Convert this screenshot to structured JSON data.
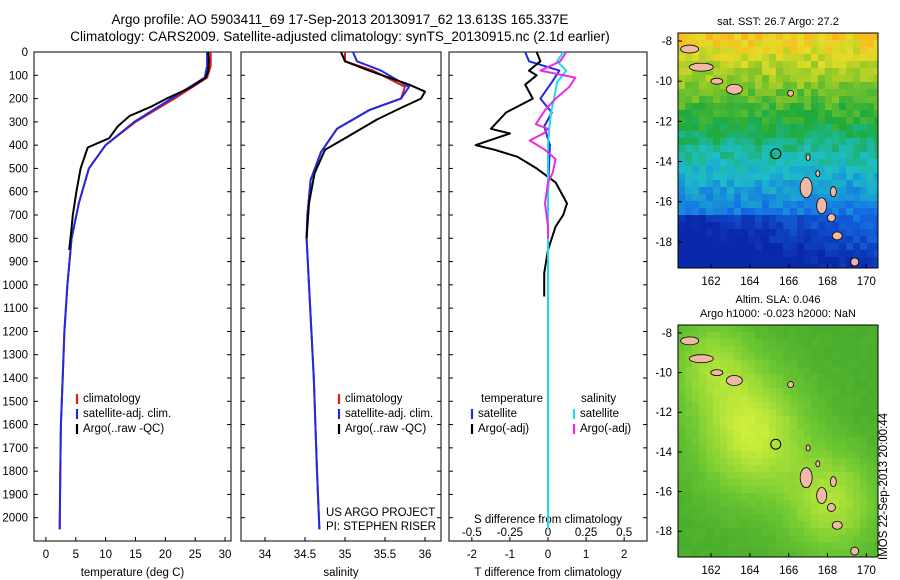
{
  "header": {
    "line1": "Argo profile: AO 5903411_69 17-Sep-2013 20130917_62 13.613S 165.337E",
    "line2": "Climatology: CARS2009. Satellite-adjusted climatology: synTS_20130915.nc (2.1d earlier)"
  },
  "colors": {
    "climatology": "#e8141a",
    "satellite": "#1f2be3",
    "argo": "#000000",
    "satellite_s": "#22d8ec",
    "argo_s": "#e62ee0",
    "land": "#f2b8a6"
  },
  "panels": {
    "temperature": {
      "xlabel": "temperature (deg C)",
      "legend": [
        "climatology",
        "satellite-adj. clim.",
        "Argo(..raw -QC)"
      ]
    },
    "salinity": {
      "xlabel": "salinity",
      "legend": [
        "climatology",
        "satellite-adj. clim.",
        "Argo(..raw -QC)"
      ],
      "credit1": "US ARGO PROJECT",
      "credit2": "PI: STEPHEN RISER"
    },
    "difference": {
      "xlabel": "T difference from climatology",
      "top_axis_title": "S difference from climatology",
      "legend_t_head": "temperature",
      "legend_s_head": "salinity",
      "legend_t": [
        "satellite",
        "Argo(-adj)"
      ],
      "legend_s": [
        "satellite",
        "Argo(-adj)"
      ]
    }
  },
  "maps": {
    "sst": {
      "title": "sat. SST: 26.7 Argo: 27.2"
    },
    "sla": {
      "title1": "Altim. SLA: 0.046",
      "title2": "Argo h1000: -0.023 h2000: NaN"
    }
  },
  "stamp": "IMOS 22-Sep-2013 20:00:44",
  "chart_data": [
    {
      "type": "line",
      "title": "",
      "xlabel": "temperature (deg C)",
      "ylabel": "",
      "xlim": [
        -2,
        31
      ],
      "ylim": [
        2100,
        0
      ],
      "xticks": [
        0,
        5,
        10,
        15,
        20,
        25,
        30
      ],
      "yticks": [
        0,
        100,
        200,
        300,
        400,
        500,
        600,
        700,
        800,
        900,
        1000,
        1100,
        1200,
        1300,
        1400,
        1500,
        1600,
        1700,
        1800,
        1900,
        2000
      ],
      "series": [
        {
          "name": "climatology",
          "color": "#e8141a",
          "x": [
            27.6,
            27.6,
            27.0,
            21.5,
            15.0,
            10.0,
            7.2,
            5.5,
            4.3,
            3.6,
            3.1,
            2.8,
            2.5,
            2.4,
            2.3
          ],
          "y": [
            0,
            60,
            110,
            200,
            300,
            400,
            500,
            650,
            800,
            1000,
            1200,
            1400,
            1600,
            1800,
            2050
          ]
        },
        {
          "name": "satellite-adj. clim.",
          "color": "#1f2be3",
          "x": [
            27.0,
            27.0,
            26.6,
            21.0,
            14.8,
            10.0,
            7.2,
            5.5,
            4.3,
            3.6,
            3.1,
            2.8,
            2.5,
            2.4,
            2.3
          ],
          "y": [
            0,
            60,
            110,
            200,
            300,
            400,
            500,
            650,
            800,
            1000,
            1200,
            1400,
            1600,
            1800,
            2050
          ]
        },
        {
          "name": "Argo(..raw -QC)",
          "color": "#000000",
          "x": [
            27.2,
            27.3,
            27.2,
            26.8,
            24.0,
            20.2,
            17.6,
            14.0,
            12.0,
            10.6,
            7.0,
            5.8,
            5.1,
            4.5,
            4.2,
            3.9
          ],
          "y": [
            0,
            40,
            80,
            110,
            155,
            200,
            235,
            275,
            320,
            370,
            410,
            500,
            600,
            700,
            780,
            850
          ]
        }
      ]
    },
    {
      "type": "line",
      "title": "",
      "xlabel": "salinity",
      "ylabel": "",
      "xlim": [
        33.7,
        36.2
      ],
      "ylim": [
        2100,
        0
      ],
      "xticks": [
        34,
        34.5,
        35,
        35.5,
        36
      ],
      "series": [
        {
          "name": "climatology",
          "color": "#e8141a",
          "x": [
            35.0,
            35.0,
            35.35,
            35.75,
            35.7,
            35.3,
            34.9,
            34.7,
            34.57,
            34.53,
            34.52,
            34.55,
            34.58,
            34.61,
            34.63,
            34.65,
            34.68
          ],
          "y": [
            0,
            40,
            80,
            150,
            200,
            250,
            330,
            430,
            550,
            700,
            800,
            1000,
            1200,
            1400,
            1600,
            1800,
            2050
          ]
        },
        {
          "name": "satellite-adj. clim.",
          "color": "#1f2be3",
          "x": [
            35.1,
            35.15,
            35.45,
            35.8,
            35.7,
            35.3,
            34.9,
            34.7,
            34.57,
            34.53,
            34.52,
            34.55,
            34.58,
            34.61,
            34.63,
            34.65,
            34.68
          ],
          "y": [
            0,
            40,
            80,
            150,
            200,
            250,
            330,
            430,
            550,
            700,
            800,
            1000,
            1200,
            1400,
            1600,
            1800,
            2050
          ]
        },
        {
          "name": "Argo(..raw -QC)",
          "color": "#000000",
          "x": [
            34.95,
            35.0,
            35.3,
            35.8,
            36.0,
            35.95,
            35.7,
            35.4,
            35.0,
            34.75,
            34.62,
            34.55,
            34.52
          ],
          "y": [
            0,
            40,
            80,
            140,
            170,
            200,
            240,
            290,
            370,
            420,
            520,
            650,
            800
          ]
        }
      ]
    },
    {
      "type": "line",
      "title": "",
      "xlabel": "T difference from climatology",
      "ylabel": "",
      "top_axis_label": "S difference from climatology",
      "xlim": [
        -2.6,
        2.6
      ],
      "ylim": [
        2100,
        0
      ],
      "xticks": [
        -2,
        -1,
        0,
        1,
        2
      ],
      "top_xticks": [
        -0.5,
        -0.25,
        0,
        0.25,
        0.5
      ],
      "series": [
        {
          "name": "temperature satellite",
          "color": "#1f2be3",
          "x": [
            -0.6,
            -0.5,
            0.3,
            0.1,
            -0.2,
            0.1,
            -0.1,
            0.05,
            0.0,
            0.0,
            0.0
          ],
          "y": [
            0,
            40,
            80,
            130,
            200,
            260,
            320,
            400,
            600,
            1000,
            2050
          ]
        },
        {
          "name": "temperature Argo(-adj)",
          "color": "#000000",
          "x": [
            -0.3,
            -0.2,
            -0.5,
            -0.3,
            -0.6,
            -0.4,
            -1.1,
            -1.5,
            -1.0,
            -1.9,
            -1.4,
            -0.8,
            -0.3,
            0.2,
            0.5,
            0.4,
            0.2,
            0.0,
            -0.1,
            -0.1
          ],
          "y": [
            0,
            40,
            80,
            100,
            140,
            200,
            260,
            330,
            350,
            400,
            420,
            450,
            500,
            560,
            650,
            700,
            750,
            850,
            950,
            1050
          ]
        },
        {
          "name": "salinity satellite",
          "color": "#22d8ec",
          "x": [
            0.1,
            0.06,
            0.12,
            0.06,
            0.04,
            0.02,
            0.01,
            0.0,
            0.0,
            0.0
          ],
          "y": [
            0,
            40,
            80,
            130,
            200,
            260,
            320,
            400,
            600,
            2050
          ]
        },
        {
          "name": "salinity Argo(-adj)",
          "color": "#e62ee0",
          "x": [
            0.12,
            0.08,
            -0.05,
            0.18,
            0.14,
            0.05,
            -0.02,
            -0.08,
            0.0,
            -0.03,
            -0.12,
            -0.02,
            0.05,
            0.03,
            0.0,
            -0.02,
            0.0,
            0.0
          ],
          "y": [
            0,
            40,
            80,
            110,
            150,
            200,
            250,
            310,
            330,
            350,
            380,
            420,
            460,
            520,
            560,
            650,
            750,
            800
          ]
        }
      ]
    },
    {
      "type": "heatmap",
      "title": "sat. SST: 26.7 Argo: 27.2",
      "xlim": [
        160.3,
        170.6
      ],
      "ylim": [
        -19.3,
        -7.6
      ],
      "xticks": [
        162,
        164,
        166,
        168,
        170
      ],
      "yticks": [
        -8,
        -10,
        -12,
        -14,
        -16,
        -18
      ],
      "argo_position": {
        "lon": 165.337,
        "lat": -13.613
      }
    },
    {
      "type": "heatmap",
      "title": "Altim. SLA: 0.046 / Argo h1000: -0.023 h2000: NaN",
      "xlim": [
        160.3,
        170.6
      ],
      "ylim": [
        -19.3,
        -7.6
      ],
      "xticks": [
        162,
        164,
        166,
        168,
        170
      ],
      "yticks": [
        -8,
        -10,
        -12,
        -14,
        -16,
        -18
      ],
      "argo_position": {
        "lon": 165.337,
        "lat": -13.613
      }
    }
  ]
}
